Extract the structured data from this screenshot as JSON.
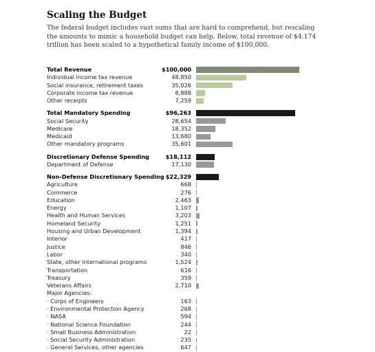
{
  "title": "Scaling the Budget",
  "intro": "The federal budget includes vast sums that are hard to comprehend, but rescaling the amounts to mimic a household budget can help. Below, total revenue of $4.174 trillion has been scaled to a hypothetical family income of $100,000.",
  "colors": {
    "revenue_header": "#7f8a72",
    "revenue_item": "#b6cc9c",
    "spending_header": "#1a1a1a",
    "spending_item": "#999999"
  },
  "chart_data": {
    "type": "bar",
    "orientation": "horizontal",
    "xlim": [
      0,
      100000
    ],
    "grid": false,
    "groups": [
      {
        "header": {
          "label": "Total Revenue",
          "value": 100000,
          "display": "$100,000"
        },
        "items": [
          {
            "label": "Individual income tax revenue",
            "value": 48850,
            "display": "48,850"
          },
          {
            "label": "Social insurance, retirement taxes",
            "value": 35026,
            "display": "35,026"
          },
          {
            "label": "Corporate income tax revenue",
            "value": 8888,
            "display": "8,888"
          },
          {
            "label": "Other receipts",
            "value": 7259,
            "display": "7,259"
          }
        ]
      },
      {
        "header": {
          "label": "Total Mandatory Spending",
          "value": 96263,
          "display": "$96,263"
        },
        "items": [
          {
            "label": "Social Security",
            "value": 28654,
            "display": "28,654"
          },
          {
            "label": "Medicare",
            "value": 18352,
            "display": "18,352"
          },
          {
            "label": "Medicaid",
            "value": 13680,
            "display": "13,680"
          },
          {
            "label": "Other mandatory programs",
            "value": 35601,
            "display": "35,601"
          }
        ]
      },
      {
        "header": {
          "label": "Discretionary Defense Spending",
          "value": 18112,
          "display": "$18,112"
        },
        "items": [
          {
            "label": "Department of Defense",
            "value": 17130,
            "display": "17,130"
          }
        ]
      },
      {
        "header": {
          "label": "Non-Defense Discretionary Spending",
          "value": 22329,
          "display": "$22,329"
        },
        "items": [
          {
            "label": "Agriculture",
            "value": 668,
            "display": "668"
          },
          {
            "label": "Commerce",
            "value": 276,
            "display": "276"
          },
          {
            "label": "Education",
            "value": 2463,
            "display": "2,463"
          },
          {
            "label": "Energy",
            "value": 1107,
            "display": "1,107"
          },
          {
            "label": "Health and Human Services",
            "value": 3203,
            "display": "3,203"
          },
          {
            "label": "Homeland Security",
            "value": 1251,
            "display": "1,251"
          },
          {
            "label": "Housing and Urban Development",
            "value": 1394,
            "display": "1,394"
          },
          {
            "label": "Interior",
            "value": 417,
            "display": "417"
          },
          {
            "label": "Justice",
            "value": 846,
            "display": "846"
          },
          {
            "label": "Labor",
            "value": 340,
            "display": "340"
          },
          {
            "label": "State, other international programs",
            "value": 1524,
            "display": "1,524"
          },
          {
            "label": "Transportation",
            "value": 616,
            "display": "616"
          },
          {
            "label": "Treasury",
            "value": 359,
            "display": "359"
          },
          {
            "label": "Veterans Affairs",
            "value": 2710,
            "display": "2,710"
          },
          {
            "label": "Major Agencies:",
            "value": null,
            "display": ""
          },
          {
            "label": "· Corps of Engineers",
            "value": 163,
            "display": "163"
          },
          {
            "label": "· Environmental Protection Agency",
            "value": 268,
            "display": "268"
          },
          {
            "label": "· NASA",
            "value": 594,
            "display": "594"
          },
          {
            "label": "· National Science Foundation",
            "value": 244,
            "display": "244"
          },
          {
            "label": "· Small Business Administration",
            "value": 22,
            "display": "22"
          },
          {
            "label": "· Social Security Administration",
            "value": 235,
            "display": "235"
          },
          {
            "label": "· General Services, other agencies",
            "value": 647,
            "display": "647"
          }
        ]
      }
    ]
  }
}
